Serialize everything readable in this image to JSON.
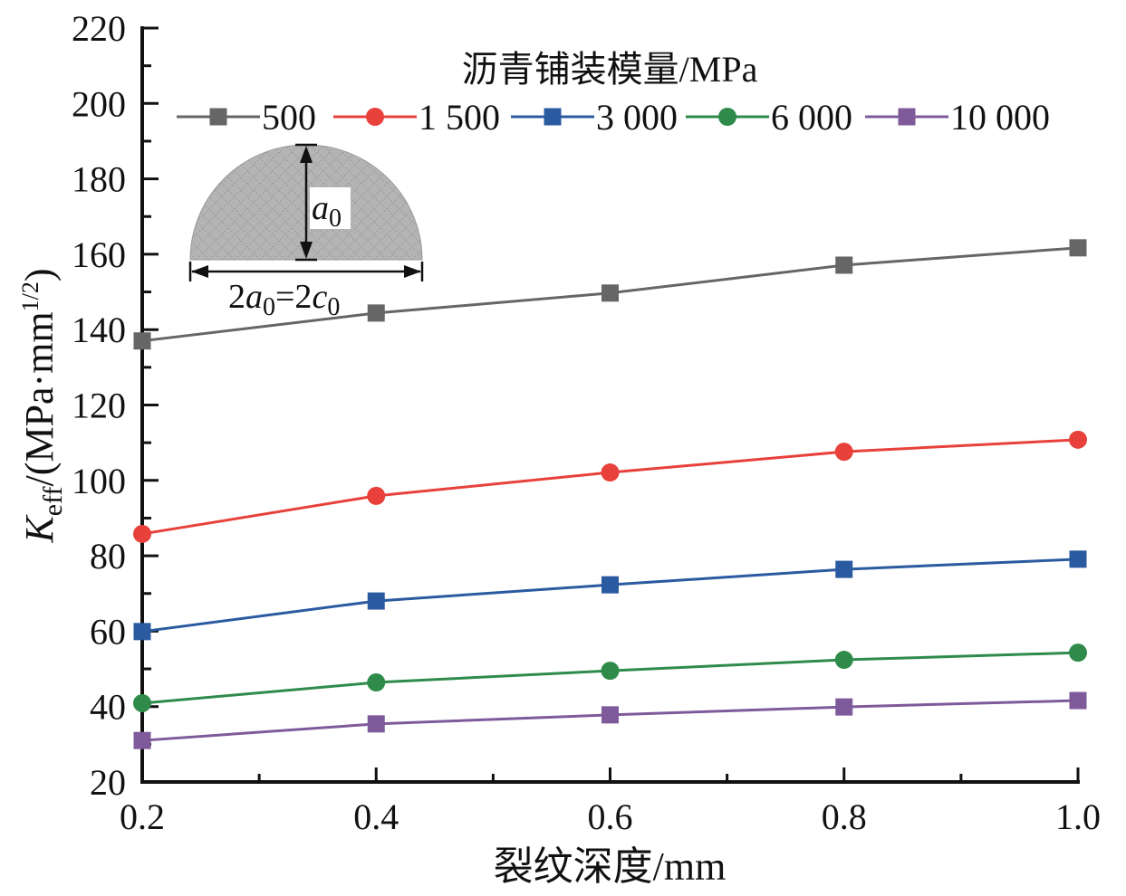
{
  "chart_data": {
    "type": "line",
    "title": "",
    "xlabel": "裂纹深度/mm",
    "ylabel": {
      "main": "K",
      "sub": "eff",
      "rest": "/(MPa·mm",
      "sup": "1/2",
      "close": ")"
    },
    "xlim": [
      0.2,
      1.0
    ],
    "ylim": [
      20,
      220
    ],
    "x": [
      0.2,
      0.4,
      0.6,
      0.8,
      1.0
    ],
    "xticks": [
      0.2,
      0.4,
      0.6,
      0.8,
      1.0
    ],
    "xtick_labels": [
      "0.2",
      "0.4",
      "0.6",
      "0.8",
      "1.0"
    ],
    "x_minor_ticks": [
      0.3,
      0.5,
      0.7,
      0.9
    ],
    "yticks": [
      20,
      40,
      60,
      80,
      100,
      120,
      140,
      160,
      180,
      200,
      220
    ],
    "ytick_labels": [
      "20",
      "40",
      "60",
      "80",
      "100",
      "120",
      "140",
      "160",
      "180",
      "200",
      "220"
    ],
    "y_minor_ticks": [
      30,
      50,
      70,
      90,
      110,
      130,
      150,
      170,
      190,
      210
    ],
    "grid": false,
    "legend": {
      "title": "沥青铺装模量/MPa",
      "placement": "top",
      "orientation": "horizontal"
    },
    "series": [
      {
        "name": "500",
        "color": "#666666",
        "marker": "square",
        "values": [
          137.0,
          144.4,
          149.7,
          157.1,
          161.7
        ]
      },
      {
        "name": "1 500",
        "color": "#e8403a",
        "marker": "circle",
        "values": [
          85.8,
          95.9,
          102.1,
          107.6,
          110.8
        ]
      },
      {
        "name": "3 000",
        "color": "#2a5aa0",
        "marker": "square",
        "values": [
          59.9,
          68.0,
          72.3,
          76.4,
          79.1
        ]
      },
      {
        "name": "6 000",
        "color": "#2e8b4a",
        "marker": "circle",
        "values": [
          40.9,
          46.4,
          49.5,
          52.4,
          54.3
        ]
      },
      {
        "name": "10 000",
        "color": "#7e5a9b",
        "marker": "square",
        "values": [
          31.0,
          35.4,
          37.8,
          39.9,
          41.6
        ]
      }
    ],
    "inset": {
      "description": "semi-elliptical crack mesh",
      "height_label": {
        "main": "a",
        "sub": "0"
      },
      "width_label": {
        "parts": [
          "2",
          "a",
          "0",
          "=2",
          "c",
          "0"
        ]
      },
      "fill_color": "#b4b4b4"
    }
  }
}
